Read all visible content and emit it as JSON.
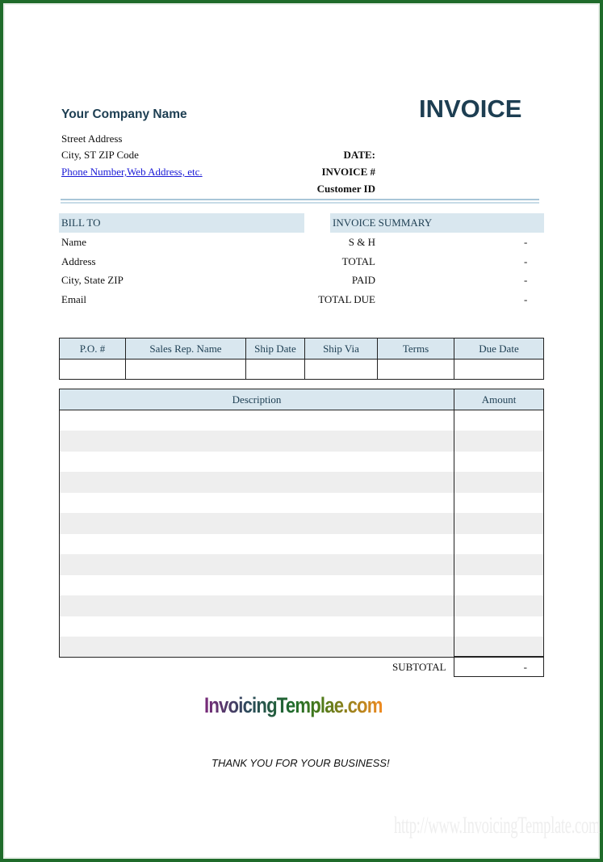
{
  "header": {
    "company": "Your Company Name",
    "title": "INVOICE",
    "street": "Street Address",
    "city": "City, ST  ZIP Code",
    "contact_link": "Phone Number,Web Address, etc.",
    "date_label": "DATE:",
    "invoice_label": "INVOICE #",
    "customer_label": "Customer ID"
  },
  "bill_to": {
    "heading": "BILL TO",
    "fields": [
      "Name",
      "Address",
      "City, State ZIP",
      "Email"
    ]
  },
  "summary": {
    "heading": "INVOICE SUMMARY",
    "rows": [
      {
        "label": "S & H",
        "value": "-"
      },
      {
        "label": "TOTAL",
        "value": "-"
      },
      {
        "label": "PAID",
        "value": "-"
      },
      {
        "label": "TOTAL DUE",
        "value": "-"
      }
    ]
  },
  "order_table": {
    "headers": [
      "P.O. #",
      "Sales Rep. Name",
      "Ship Date",
      "Ship Via",
      "Terms",
      "Due Date"
    ]
  },
  "items_table": {
    "headers": [
      "Description",
      "Amount"
    ],
    "subtotal_label": "SUBTOTAL",
    "subtotal_value": "-"
  },
  "footer": {
    "logo": "InvoicingTemplae.com",
    "thanks": "THANK YOU FOR YOUR BUSINESS!",
    "watermark": "http://www.InvoicingTemplate.com"
  },
  "colors": {
    "accent": "#1d3e52",
    "band": "#d9e7ef",
    "frame": "#1f6b2a",
    "link": "#1a1ad6"
  }
}
